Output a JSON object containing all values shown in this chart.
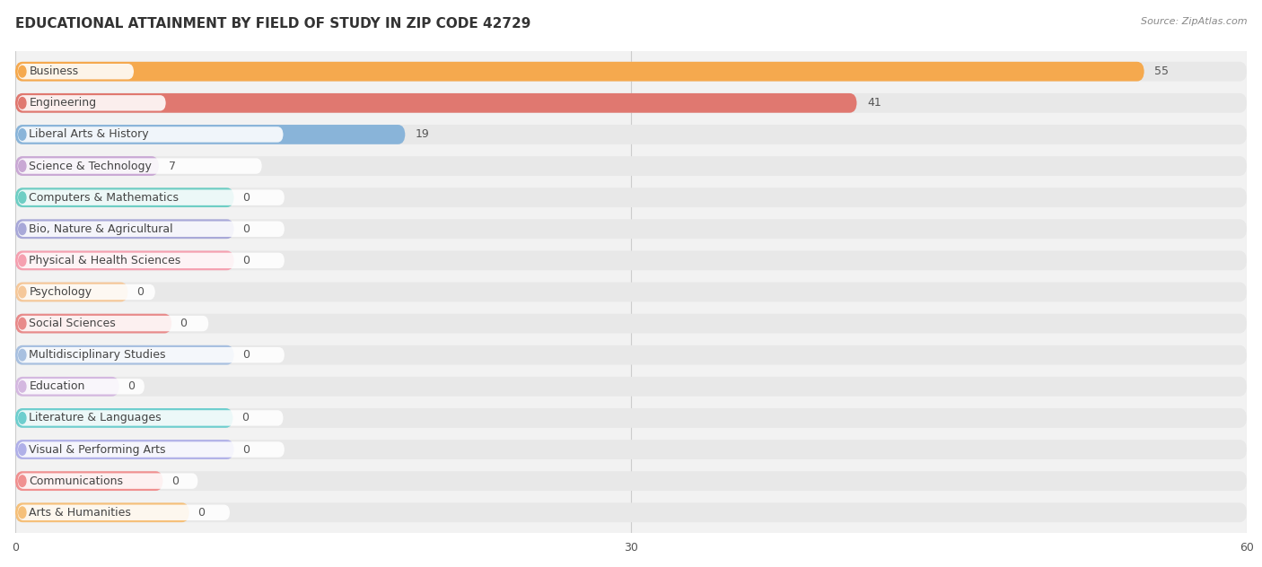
{
  "title": "EDUCATIONAL ATTAINMENT BY FIELD OF STUDY IN ZIP CODE 42729",
  "source": "Source: ZipAtlas.com",
  "categories": [
    "Business",
    "Engineering",
    "Liberal Arts & History",
    "Science & Technology",
    "Computers & Mathematics",
    "Bio, Nature & Agricultural",
    "Physical & Health Sciences",
    "Psychology",
    "Social Sciences",
    "Multidisciplinary Studies",
    "Education",
    "Literature & Languages",
    "Visual & Performing Arts",
    "Communications",
    "Arts & Humanities"
  ],
  "values": [
    55,
    41,
    19,
    7,
    0,
    0,
    0,
    0,
    0,
    0,
    0,
    0,
    0,
    0,
    0
  ],
  "bar_colors": [
    "#f5a94e",
    "#e07870",
    "#89b4d9",
    "#c9a8d4",
    "#6ecec4",
    "#a8a8d8",
    "#f5a0b0",
    "#f5c89a",
    "#e88a8a",
    "#a8c0e0",
    "#d4b8e0",
    "#6ecece",
    "#b0b0e8",
    "#f09090",
    "#f5c07a"
  ],
  "xlim": [
    0,
    60
  ],
  "xticks": [
    0,
    30,
    60
  ],
  "bg_color": "#f0f0f0",
  "row_bg_color": "#ebebeb",
  "title_fontsize": 11,
  "label_fontsize": 9,
  "value_fontsize": 9
}
